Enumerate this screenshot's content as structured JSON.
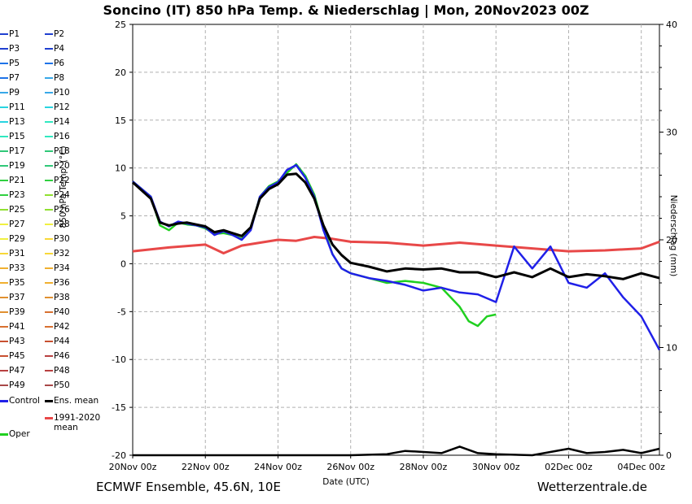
{
  "title": "Soncino  (IT)  850 hPa Temp. & Niederschlag | Mon, 20Nov2023 00Z",
  "footer": {
    "left": "ECMWF Ensemble, 45.6N, 10E",
    "right": "Wetterzentrale.de"
  },
  "colors": {
    "members": [
      "#1f3fd0",
      "#1e73e8",
      "#38a8e8",
      "#28d4e0",
      "#30e8c0",
      "#30c878",
      "#30d040",
      "#90e030",
      "#f0f040",
      "#f8d838",
      "#f0b030",
      "#e09030",
      "#d87030",
      "#c85030",
      "#b84040",
      "#a84848"
    ],
    "control": "#2020e8",
    "mean": "#000000",
    "climate": "#e84848",
    "oper": "#20d020",
    "grid": "#b0b0b0"
  },
  "chart_data": {
    "type": "line",
    "title": "Soncino  (IT)  850 hPa Temp. & Niederschlag | Mon, 20Nov2023 00Z",
    "xlabel": "Date (UTC)",
    "ylabel": "850 hPa Temp. (°C)",
    "ylabel_right": "Niederschlag (mm)",
    "ylim": [
      -20,
      25
    ],
    "ylim_right": [
      0,
      40
    ],
    "x_unit": "days since 20Nov 00z",
    "xlim": [
      0,
      14.5
    ],
    "x_ticks": [
      {
        "x": 0,
        "label": "20Nov 00z"
      },
      {
        "x": 2,
        "label": "22Nov 00z"
      },
      {
        "x": 4,
        "label": "24Nov 00z"
      },
      {
        "x": 6,
        "label": "26Nov 00z"
      },
      {
        "x": 8,
        "label": "28Nov 00z"
      },
      {
        "x": 10,
        "label": "30Nov 00z"
      },
      {
        "x": 12,
        "label": "02Dec 00z"
      },
      {
        "x": 14,
        "label": "04Dec 00z"
      }
    ],
    "y_ticks": [
      25,
      20,
      15,
      10,
      5,
      0,
      -5,
      -10,
      -15,
      -20
    ],
    "y_ticks_right": [
      40,
      30,
      20,
      10,
      0
    ],
    "grid": true,
    "legend_position": "left",
    "legend": [
      "P1",
      "P2",
      "P3",
      "P4",
      "P5",
      "P6",
      "P7",
      "P8",
      "P9",
      "P10",
      "P11",
      "P12",
      "P13",
      "P14",
      "P15",
      "P16",
      "P17",
      "P18",
      "P19",
      "P20",
      "P21",
      "P22",
      "P23",
      "P24",
      "P25",
      "P26",
      "P27",
      "P28",
      "P29",
      "P30",
      "P31",
      "P32",
      "P33",
      "P34",
      "P35",
      "P36",
      "P37",
      "P38",
      "P39",
      "P40",
      "P41",
      "P42",
      "P43",
      "P44",
      "P45",
      "P46",
      "P47",
      "P48",
      "P49",
      "P50",
      "Control",
      "Ens. mean",
      "1991-2020 mean",
      "Oper"
    ],
    "series": [
      {
        "name": "Ens. mean",
        "axis": "left",
        "x": [
          0,
          0.5,
          0.75,
          1,
          1.25,
          1.5,
          1.75,
          2,
          2.25,
          2.5,
          2.75,
          3,
          3.25,
          3.5,
          3.75,
          4,
          4.25,
          4.5,
          4.75,
          5,
          5.25,
          5.5,
          5.75,
          6,
          6.5,
          7,
          7.5,
          8,
          8.5,
          9,
          9.5,
          10,
          10.5,
          11,
          11.5,
          12,
          12.5,
          13,
          13.5,
          14,
          14.5
        ],
        "values": [
          8.5,
          6.8,
          4.3,
          4.0,
          4.2,
          4.3,
          4.1,
          3.9,
          3.3,
          3.5,
          3.2,
          2.9,
          3.8,
          6.8,
          7.8,
          8.3,
          9.3,
          9.4,
          8.5,
          6.8,
          4.0,
          2.0,
          0.9,
          0.1,
          -0.3,
          -0.8,
          -0.5,
          -0.6,
          -0.5,
          -0.9,
          -0.9,
          -1.4,
          -0.9,
          -1.4,
          -0.5,
          -1.4,
          -1.1,
          -1.3,
          -1.6,
          -1.0,
          -1.5
        ]
      },
      {
        "name": "Control",
        "axis": "left",
        "x": [
          0,
          0.5,
          0.75,
          1,
          1.25,
          1.5,
          1.75,
          2,
          2.25,
          2.5,
          2.75,
          3,
          3.25,
          3.5,
          3.75,
          4,
          4.25,
          4.5,
          4.75,
          5,
          5.25,
          5.5,
          5.75,
          6,
          6.5,
          7,
          7.5,
          8,
          8.5,
          9,
          9.5,
          10,
          10.5,
          11,
          11.5,
          12,
          12.5,
          13,
          13.5,
          14,
          14.5
        ],
        "values": [
          8.6,
          7.0,
          4.4,
          3.9,
          4.4,
          4.2,
          4.0,
          3.8,
          3.0,
          3.4,
          3.0,
          2.5,
          3.5,
          7.0,
          8.0,
          8.5,
          9.8,
          10.3,
          9.0,
          7.0,
          3.5,
          1.0,
          -0.5,
          -1.0,
          -1.5,
          -1.8,
          -2.2,
          -2.8,
          -2.5,
          -3.0,
          -3.2,
          -4.0,
          1.8,
          -0.5,
          1.8,
          -2.0,
          -2.5,
          -1.0,
          -3.5,
          -5.5,
          -9.0
        ]
      },
      {
        "name": "1991-2020 mean",
        "axis": "left",
        "x": [
          0,
          1,
          2,
          2.5,
          3,
          4,
          4.5,
          5,
          5.5,
          6,
          7,
          8,
          9,
          10,
          11,
          12,
          13,
          14,
          14.5
        ],
        "values": [
          1.3,
          1.7,
          2.0,
          1.1,
          1.9,
          2.5,
          2.4,
          2.8,
          2.6,
          2.3,
          2.2,
          1.9,
          2.2,
          1.9,
          1.6,
          1.3,
          1.4,
          1.6,
          2.3
        ]
      },
      {
        "name": "Oper",
        "axis": "left",
        "x": [
          0,
          0.5,
          0.75,
          1,
          1.25,
          1.5,
          1.75,
          2,
          2.25,
          2.5,
          2.75,
          3,
          3.25,
          3.5,
          3.75,
          4,
          4.25,
          4.5,
          4.75,
          5,
          5.25,
          5.5,
          5.75,
          6,
          6.5,
          7,
          7.5,
          8,
          8.5,
          9,
          9.25,
          9.5,
          9.75,
          10
        ],
        "values": [
          8.6,
          7.0,
          4.0,
          3.5,
          4.3,
          4.1,
          4.0,
          3.7,
          3.1,
          3.2,
          3.0,
          2.6,
          3.6,
          7.0,
          8.1,
          8.6,
          9.5,
          10.4,
          9.2,
          7.2,
          3.8,
          1.0,
          -0.5,
          -1.0,
          -1.5,
          -2.0,
          -1.8,
          -2.0,
          -2.5,
          -4.5,
          -6.0,
          -6.5,
          -5.5,
          -5.3
        ]
      },
      {
        "name": "Ensemble mean precipitation",
        "axis": "right",
        "x": [
          0,
          6,
          7,
          7.5,
          8,
          8.5,
          9,
          9.5,
          10,
          11,
          12,
          12.5,
          13,
          13.5,
          14,
          14.5
        ],
        "values": [
          0,
          0,
          0.1,
          0.4,
          0.3,
          0.2,
          0.8,
          0.2,
          0.1,
          0,
          0.6,
          0.2,
          0.3,
          0.5,
          0.2,
          0.6
        ]
      }
    ]
  }
}
